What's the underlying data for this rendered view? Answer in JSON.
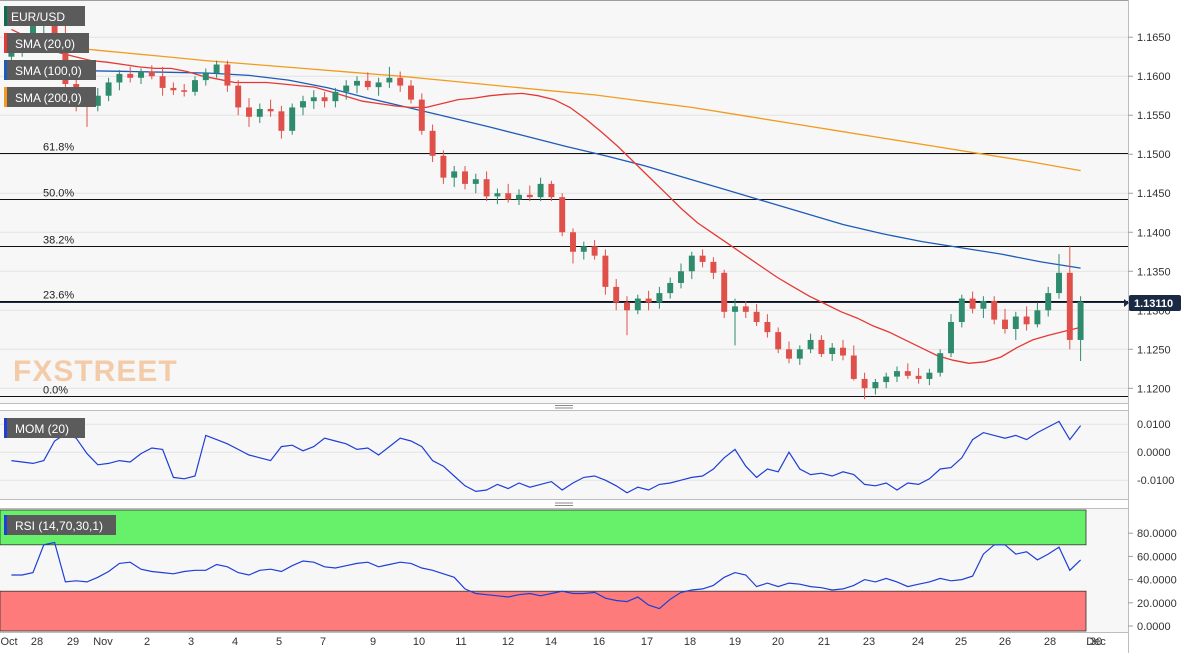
{
  "chart_data": [
    {
      "type": "candlestick",
      "legend": {
        "symbol": "EUR/USD",
        "overlays": [
          {
            "label": "SMA (20,0)",
            "color": "#e53935"
          },
          {
            "label": "SMA (100,0)",
            "color": "#1e5bb8"
          },
          {
            "label": "SMA (200,0)",
            "color": "#f29b1e"
          }
        ]
      },
      "watermark": "FXSTREET",
      "last_price": "1.13110",
      "ylim": [
        1.1185,
        1.169
      ],
      "y_ticks": [
        "1.1650",
        "1.1600",
        "1.1550",
        "1.1500",
        "1.1450",
        "1.1400",
        "1.1350",
        "1.1300",
        "1.1250",
        "1.1200"
      ],
      "x_ticks": [
        "Oct",
        "28",
        "29",
        "Nov",
        "2",
        "3",
        "4",
        "5",
        "7",
        "9",
        "10",
        "11",
        "12",
        "14",
        "16",
        "17",
        "18",
        "19",
        "20",
        "21",
        "23",
        "24",
        "25",
        "26",
        "28",
        "30",
        "Dec"
      ],
      "fibonacci": [
        {
          "label": "61.8%",
          "value": 1.1501
        },
        {
          "label": "50.0%",
          "value": 1.1443
        },
        {
          "label": "38.2%",
          "value": 1.1383
        },
        {
          "label": "23.6%",
          "value": 1.1312
        },
        {
          "label": "0.0%",
          "value": 1.119
        }
      ],
      "candles_ohlc": [
        [
          1.1625,
          1.164,
          1.1615,
          1.1635
        ],
        [
          1.1635,
          1.165,
          1.1625,
          1.1645
        ],
        [
          1.1645,
          1.168,
          1.1635,
          1.1672
        ],
        [
          1.1672,
          1.169,
          1.1655,
          1.168
        ],
        [
          1.168,
          1.169,
          1.164,
          1.1655
        ],
        [
          1.1655,
          1.1665,
          1.158,
          1.159
        ],
        [
          1.159,
          1.1605,
          1.1555,
          1.1565
        ],
        [
          1.1565,
          1.1575,
          1.1535,
          1.1562
        ],
        [
          1.1562,
          1.1585,
          1.1555,
          1.1575
        ],
        [
          1.1575,
          1.1598,
          1.1568,
          1.1592
        ],
        [
          1.1592,
          1.1608,
          1.1582,
          1.1603
        ],
        [
          1.1603,
          1.1612,
          1.1592,
          1.1598
        ],
        [
          1.1598,
          1.161,
          1.159,
          1.1606
        ],
        [
          1.1606,
          1.1614,
          1.1596,
          1.16
        ],
        [
          1.16,
          1.1612,
          1.1575,
          1.1585
        ],
        [
          1.1585,
          1.1592,
          1.1576,
          1.1582
        ],
        [
          1.1582,
          1.159,
          1.1574,
          1.158
        ],
        [
          1.158,
          1.16,
          1.1575,
          1.1595
        ],
        [
          1.1595,
          1.161,
          1.1588,
          1.1604
        ],
        [
          1.1604,
          1.162,
          1.1598,
          1.1615
        ],
        [
          1.1615,
          1.162,
          1.158,
          1.1588
        ],
        [
          1.1588,
          1.1595,
          1.155,
          1.156
        ],
        [
          1.156,
          1.1572,
          1.1535,
          1.1548
        ],
        [
          1.1548,
          1.1565,
          1.154,
          1.1558
        ],
        [
          1.1558,
          1.157,
          1.1548,
          1.1555
        ],
        [
          1.1555,
          1.1562,
          1.152,
          1.153
        ],
        [
          1.153,
          1.1565,
          1.1525,
          1.156
        ],
        [
          1.156,
          1.1575,
          1.155,
          1.1568
        ],
        [
          1.1568,
          1.1582,
          1.1558,
          1.1573
        ],
        [
          1.1573,
          1.158,
          1.156,
          1.1568
        ],
        [
          1.1568,
          1.1585,
          1.156,
          1.158
        ],
        [
          1.158,
          1.1595,
          1.157,
          1.1588
        ],
        [
          1.1588,
          1.16,
          1.1578,
          1.1594
        ],
        [
          1.1594,
          1.1605,
          1.1582,
          1.1586
        ],
        [
          1.1586,
          1.1598,
          1.1575,
          1.1592
        ],
        [
          1.1592,
          1.1612,
          1.1585,
          1.1598
        ],
        [
          1.1598,
          1.1606,
          1.158,
          1.1588
        ],
        [
          1.1588,
          1.1595,
          1.1565,
          1.157
        ],
        [
          1.157,
          1.1578,
          1.1525,
          1.153
        ],
        [
          1.153,
          1.1538,
          1.149,
          1.1498
        ],
        [
          1.1498,
          1.1505,
          1.1462,
          1.147
        ],
        [
          1.147,
          1.1485,
          1.1458,
          1.1478
        ],
        [
          1.1478,
          1.1485,
          1.1455,
          1.1462
        ],
        [
          1.1462,
          1.1475,
          1.145,
          1.1468
        ],
        [
          1.1468,
          1.1478,
          1.144,
          1.1446
        ],
        [
          1.1446,
          1.1456,
          1.1436,
          1.145
        ],
        [
          1.145,
          1.1462,
          1.1438,
          1.1442
        ],
        [
          1.1442,
          1.1455,
          1.1435,
          1.1448
        ],
        [
          1.1448,
          1.146,
          1.144,
          1.1445
        ],
        [
          1.1445,
          1.147,
          1.144,
          1.1462
        ],
        [
          1.1462,
          1.1466,
          1.144,
          1.1445
        ],
        [
          1.1445,
          1.145,
          1.1395,
          1.14
        ],
        [
          1.14,
          1.1405,
          1.136,
          1.1375
        ],
        [
          1.1375,
          1.1388,
          1.1365,
          1.1382
        ],
        [
          1.1382,
          1.139,
          1.1365,
          1.137
        ],
        [
          1.137,
          1.1378,
          1.132,
          1.133
        ],
        [
          1.133,
          1.134,
          1.13,
          1.131
        ],
        [
          1.131,
          1.1318,
          1.1268,
          1.13
        ],
        [
          1.13,
          1.132,
          1.1295,
          1.1315
        ],
        [
          1.1315,
          1.1325,
          1.13,
          1.131
        ],
        [
          1.131,
          1.133,
          1.1302,
          1.1322
        ],
        [
          1.1322,
          1.1342,
          1.1315,
          1.1335
        ],
        [
          1.1335,
          1.136,
          1.1328,
          1.135
        ],
        [
          1.135,
          1.1375,
          1.134,
          1.137
        ],
        [
          1.137,
          1.1378,
          1.1355,
          1.1362
        ],
        [
          1.1362,
          1.1368,
          1.134,
          1.1348
        ],
        [
          1.1348,
          1.1352,
          1.129,
          1.1298
        ],
        [
          1.1298,
          1.1315,
          1.1255,
          1.1305
        ],
        [
          1.1305,
          1.1312,
          1.129,
          1.1298
        ],
        [
          1.1298,
          1.1308,
          1.128,
          1.1285
        ],
        [
          1.1285,
          1.1295,
          1.1265,
          1.1272
        ],
        [
          1.1272,
          1.1278,
          1.1245,
          1.125
        ],
        [
          1.125,
          1.126,
          1.1232,
          1.1238
        ],
        [
          1.1238,
          1.1255,
          1.123,
          1.125
        ],
        [
          1.125,
          1.127,
          1.1245,
          1.1262
        ],
        [
          1.1262,
          1.1268,
          1.124,
          1.1244
        ],
        [
          1.1244,
          1.1258,
          1.1235,
          1.1252
        ],
        [
          1.1252,
          1.1262,
          1.1236,
          1.1242
        ],
        [
          1.1242,
          1.1255,
          1.121,
          1.1212
        ],
        [
          1.1212,
          1.122,
          1.1186,
          1.12
        ],
        [
          1.12,
          1.1212,
          1.1192,
          1.1208
        ],
        [
          1.1208,
          1.122,
          1.12,
          1.1215
        ],
        [
          1.1215,
          1.1228,
          1.1208,
          1.1222
        ],
        [
          1.1222,
          1.1232,
          1.1212,
          1.1216
        ],
        [
          1.1216,
          1.1226,
          1.1206,
          1.1212
        ],
        [
          1.1212,
          1.1225,
          1.1204,
          1.122
        ],
        [
          1.122,
          1.125,
          1.1215,
          1.1245
        ],
        [
          1.1245,
          1.1295,
          1.124,
          1.1285
        ],
        [
          1.1285,
          1.132,
          1.1278,
          1.1315
        ],
        [
          1.1315,
          1.1324,
          1.1296,
          1.1302
        ],
        [
          1.1302,
          1.1318,
          1.129,
          1.1312
        ],
        [
          1.1312,
          1.1318,
          1.1282,
          1.1288
        ],
        [
          1.1288,
          1.1302,
          1.127,
          1.1276
        ],
        [
          1.1276,
          1.1298,
          1.1262,
          1.1292
        ],
        [
          1.1292,
          1.1305,
          1.1274,
          1.1282
        ],
        [
          1.1282,
          1.131,
          1.1278,
          1.13
        ],
        [
          1.13,
          1.133,
          1.1292,
          1.1322
        ],
        [
          1.1322,
          1.1372,
          1.1315,
          1.1348
        ],
        [
          1.1348,
          1.1383,
          1.125,
          1.1262
        ],
        [
          1.1262,
          1.1318,
          1.1235,
          1.1311
        ]
      ],
      "sma_20": [
        1.161,
        1.1606,
        1.16,
        1.1596,
        1.1592,
        1.1592,
        1.1592,
        1.159,
        1.1588,
        1.1586,
        1.158,
        1.1574,
        1.1568,
        1.1565,
        1.1562,
        1.156,
        1.156,
        1.1565,
        1.157,
        1.1572,
        1.1575,
        1.1577,
        1.1578,
        1.1575,
        1.157,
        1.156,
        1.1545,
        1.1528,
        1.151,
        1.149,
        1.147,
        1.145,
        1.143,
        1.1412,
        1.1398,
        1.1384,
        1.137,
        1.1356,
        1.1342,
        1.133,
        1.1318,
        1.1308,
        1.1298,
        1.129,
        1.128,
        1.1272,
        1.1262,
        1.1252,
        1.1242,
        1.1236,
        1.1232,
        1.1234,
        1.124,
        1.1252,
        1.1262,
        1.1268,
        1.1273,
        1.1278
      ],
      "sma_20_start": 42,
      "sma_100": [
        1.1608,
        1.1608,
        1.1607,
        1.1606,
        1.1605,
        1.1604,
        1.1601,
        1.1595,
        1.1585,
        1.1572,
        1.156,
        1.1548,
        1.1536,
        1.1523,
        1.151,
        1.1498,
        1.1485,
        1.147,
        1.1455,
        1.144,
        1.1425,
        1.141,
        1.1398,
        1.1388,
        1.138,
        1.1372,
        1.1362,
        1.1354
      ],
      "sma_200": [
        1.1645,
        1.1638,
        1.1632,
        1.1626,
        1.162,
        1.1615,
        1.161,
        1.1605,
        1.16,
        1.1594,
        1.1588,
        1.1582,
        1.1576,
        1.1568,
        1.156,
        1.155,
        1.154,
        1.153,
        1.152,
        1.151,
        1.15,
        1.149,
        1.1479
      ],
      "line_starts_at_candle": 0,
      "sma_20_head": [
        1.166,
        1.165,
        1.164,
        1.163,
        1.1625,
        1.162,
        1.1618,
        1.1615,
        1.1612,
        1.161
      ]
    },
    {
      "type": "line",
      "label": "MOM (20)",
      "color": "#1e3fd6",
      "ylim": [
        -0.016,
        0.014
      ],
      "y_ticks": [
        "0.0100",
        "0.0000",
        "-0.0100"
      ],
      "values": [
        -0.003,
        -0.0035,
        -0.004,
        -0.003,
        0.004,
        0.0065,
        0.005,
        -0.0005,
        -0.0045,
        -0.004,
        -0.003,
        -0.0035,
        -0.0005,
        0.0015,
        0.001,
        -0.009,
        -0.0095,
        -0.0085,
        0.006,
        0.0045,
        0.003,
        0.001,
        -0.001,
        -0.002,
        -0.003,
        0.002,
        0.0025,
        0.0005,
        0.002,
        0.005,
        0.004,
        0.003,
        0.001,
        0.0015,
        -0.001,
        0.002,
        0.005,
        0.004,
        0.002,
        -0.003,
        -0.005,
        -0.0085,
        -0.012,
        -0.014,
        -0.0135,
        -0.0115,
        -0.013,
        -0.011,
        -0.0125,
        -0.0115,
        -0.0105,
        -0.0135,
        -0.011,
        -0.009,
        -0.0085,
        -0.01,
        -0.012,
        -0.0145,
        -0.0125,
        -0.0135,
        -0.0115,
        -0.011,
        -0.01,
        -0.009,
        -0.0085,
        -0.006,
        -0.002,
        0.001,
        -0.005,
        -0.009,
        -0.006,
        -0.007,
        0.0,
        -0.006,
        -0.008,
        -0.0075,
        -0.0085,
        -0.007,
        -0.008,
        -0.0115,
        -0.012,
        -0.011,
        -0.0135,
        -0.011,
        -0.0115,
        -0.0095,
        -0.006,
        -0.0055,
        -0.002,
        0.0045,
        0.007,
        0.006,
        0.005,
        0.006,
        0.0045,
        0.007,
        0.009,
        0.011,
        0.0045,
        0.0095
      ]
    },
    {
      "type": "line",
      "label": "RSI (14,70,30,1)",
      "color": "#1e3fd6",
      "ylim": [
        0,
        100
      ],
      "y_ticks": [
        "80.0000",
        "60.0000",
        "40.0000",
        "20.0000",
        "0.0000"
      ],
      "upper_band": 70,
      "lower_band": 30,
      "upper_band_color": "#67f06a",
      "lower_band_color": "#fd7b7b",
      "values": [
        44,
        44,
        46,
        70,
        72,
        38,
        39,
        38,
        42,
        47,
        54,
        55,
        49,
        47,
        46,
        45,
        47,
        48,
        48,
        53,
        51,
        46,
        44,
        48,
        49,
        47,
        52,
        56,
        55,
        51,
        50,
        52,
        54,
        55,
        51,
        53,
        55,
        54,
        50,
        48,
        45,
        42,
        32,
        28,
        27,
        26,
        25,
        27,
        28,
        26,
        28,
        30,
        28,
        28,
        29,
        24,
        22,
        21,
        25,
        18,
        15,
        23,
        29,
        31,
        32,
        35,
        42,
        46,
        44,
        34,
        37,
        34,
        37,
        36,
        34,
        33,
        31,
        32,
        35,
        40,
        38,
        41,
        38,
        34,
        36,
        38,
        41,
        39,
        40,
        43,
        62,
        70,
        70,
        62,
        64,
        57,
        62,
        68,
        48,
        57
      ]
    }
  ]
}
